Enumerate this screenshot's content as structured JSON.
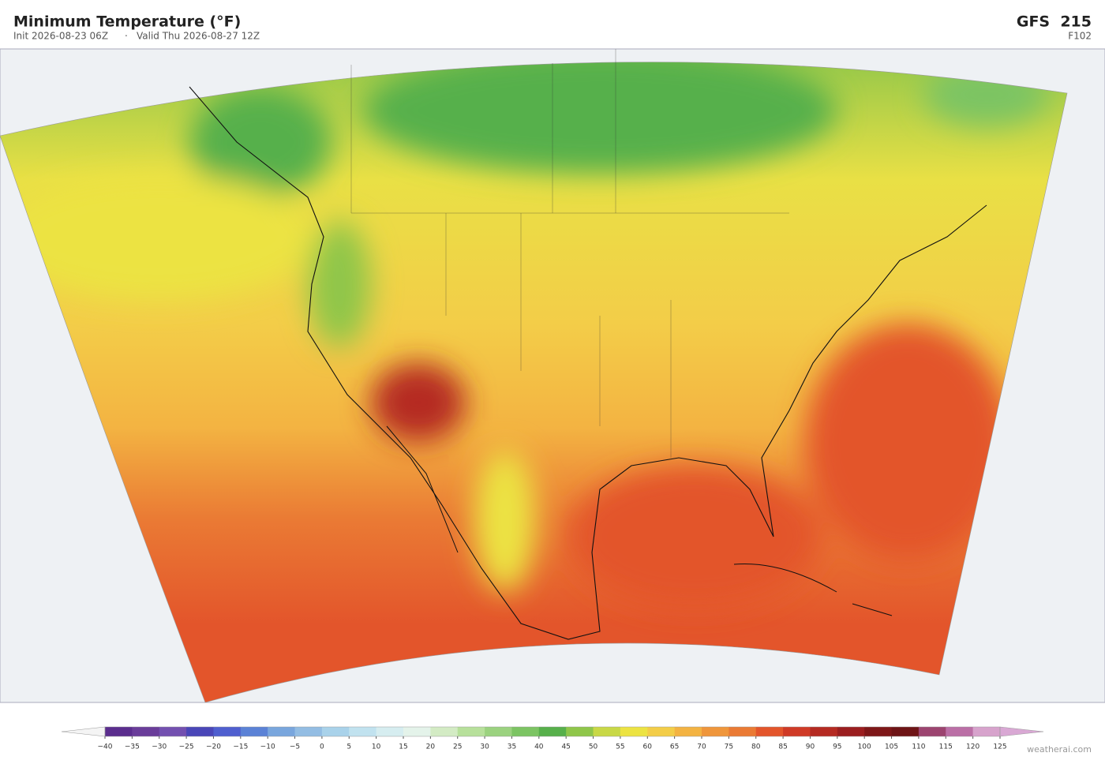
{
  "header": {
    "title": "Minimum Temperature  (°F)",
    "init": "Init 2026-08-23 06Z",
    "separator": "·",
    "valid": "Valid Thu 2026-08-27 12Z",
    "model": "GFS  215",
    "forecast_hour": "F102"
  },
  "colorbar": {
    "ticks": [
      {
        "value": -40,
        "label": "−40"
      },
      {
        "value": -35,
        "label": "−35"
      },
      {
        "value": -30,
        "label": "−30"
      },
      {
        "value": -25,
        "label": "−25"
      },
      {
        "value": -20,
        "label": "−20"
      },
      {
        "value": -15,
        "label": "−15"
      },
      {
        "value": -10,
        "label": "−10"
      },
      {
        "value": -5,
        "label": "−5"
      },
      0,
      5,
      10,
      15,
      20,
      25,
      30,
      35,
      40,
      45,
      50,
      55,
      60,
      65,
      70,
      75,
      80,
      85,
      90,
      95,
      100,
      105,
      110,
      115,
      120,
      125
    ],
    "colors": [
      "#5b2d8e",
      "#6a3d9a",
      "#7350b0",
      "#4a46b8",
      "#4f5fcf",
      "#5b82d6",
      "#79a6dd",
      "#93bde3",
      "#a9d2ea",
      "#c1e2ef",
      "#d6edf0",
      "#e4f3ea",
      "#d3ebc4",
      "#b7e09b",
      "#9bd27f",
      "#7cc463",
      "#57b04b",
      "#8fc64a",
      "#c8d846",
      "#ece342",
      "#f3cd48",
      "#f3b342",
      "#ef963b",
      "#ea7a34",
      "#e3552b",
      "#cf3a26",
      "#b52a22",
      "#9b1e1f",
      "#7e1718",
      "#6e1416",
      "#9c4470",
      "#bb6fa6",
      "#d7a3cc"
    ],
    "under_color": "#f4f4f4",
    "over_color": "#d9a8d4"
  },
  "footer": {
    "credit": "weatherai.com"
  }
}
